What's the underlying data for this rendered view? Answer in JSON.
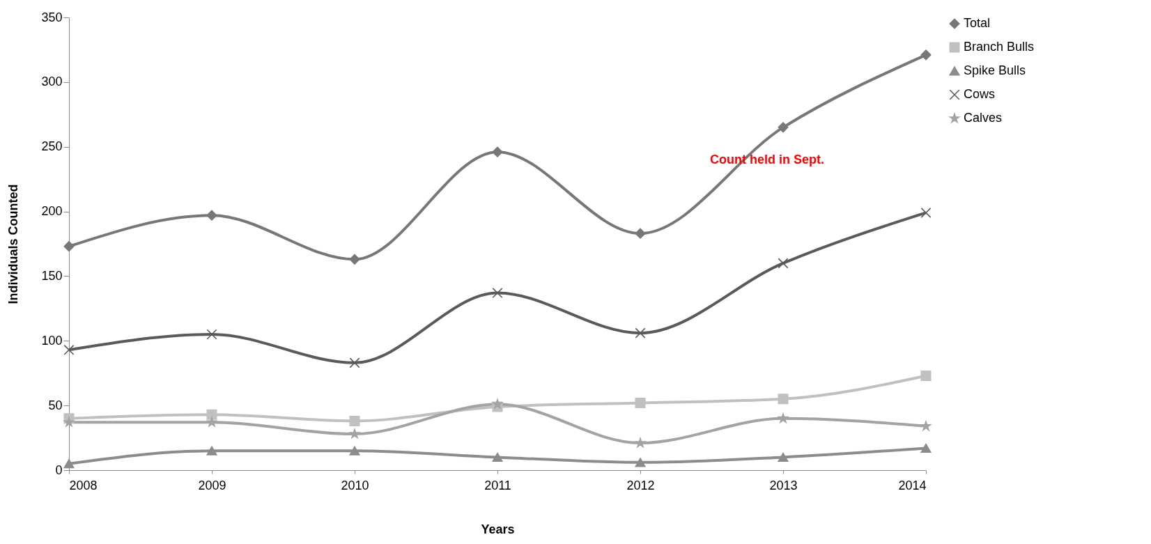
{
  "chart_data": {
    "type": "line",
    "xlabel": "Years",
    "ylabel": "Individuals Counted",
    "x": [
      2008,
      2009,
      2010,
      2011,
      2012,
      2013,
      2014
    ],
    "xlim": [
      2008,
      2014
    ],
    "xticks": [
      2008,
      2009,
      2010,
      2011,
      2012,
      2013,
      2014
    ],
    "ylim": [
      0,
      350
    ],
    "yticks": [
      0,
      50,
      100,
      150,
      200,
      250,
      300,
      350
    ],
    "grid": false,
    "legend": "top right",
    "annotations": [
      "Count held in Sept."
    ],
    "series": [
      {
        "name": "Total",
        "color": "#777777",
        "marker": "diamond",
        "values": [
          173,
          197,
          163,
          246,
          183,
          265,
          321
        ]
      },
      {
        "name": "Branch Bulls",
        "color": "#c0c0c0",
        "marker": "square",
        "values": [
          40,
          43,
          38,
          49,
          52,
          55,
          73
        ]
      },
      {
        "name": "Spike Bulls",
        "color": "#8c8c8c",
        "marker": "triangle",
        "values": [
          5,
          15,
          15,
          10,
          6,
          10,
          17
        ]
      },
      {
        "name": "Cows",
        "color": "#5a5a5a",
        "marker": "cross",
        "values": [
          93,
          105,
          83,
          137,
          106,
          160,
          199
        ]
      },
      {
        "name": "Calves",
        "color": "#a3a3a3",
        "marker": "star",
        "values": [
          37,
          37,
          28,
          51,
          21,
          40,
          34
        ]
      }
    ]
  }
}
